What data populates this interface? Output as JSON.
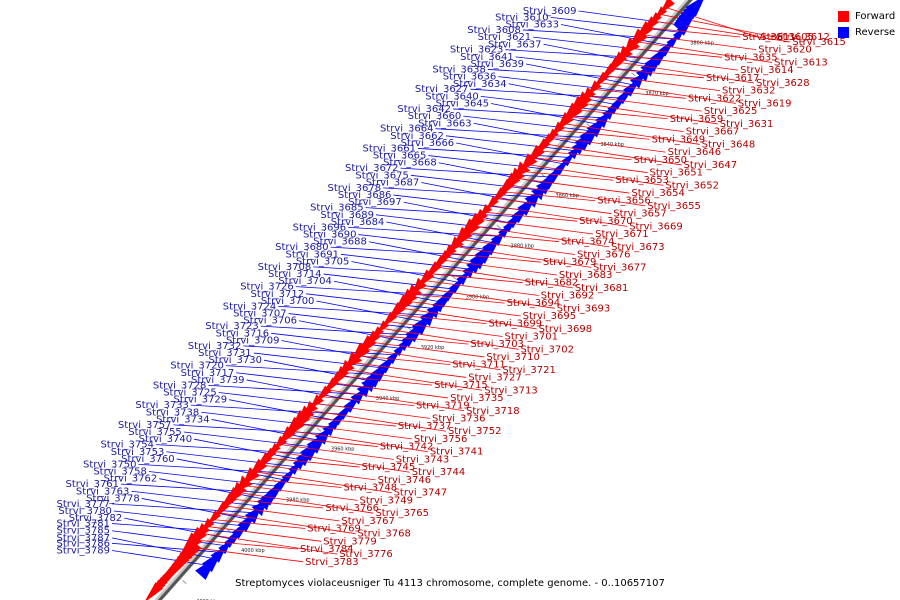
{
  "legend": {
    "forward_label": "Forward",
    "reverse_label": "Reverse",
    "forward_color": "#ff0000",
    "reverse_color": "#0000ff"
  },
  "caption": "Streptomyces violaceusniger Tu 4113 chromosome, complete genome. - 0..10657107",
  "axis_ticks": [
    "3800 kbp",
    "3820 kbp",
    "3840 kbp",
    "3860 kbp",
    "3880 kbp",
    "3900 kbp",
    "3920 kbp",
    "3940 kbp",
    "3960 kbp",
    "3980 kbp",
    "4000 kbp",
    "4020 kbp"
  ],
  "reverse_genes": [
    "Strvi_3609",
    "Strvi_3610",
    "Strvi_3608",
    "Strvi_3633",
    "Strvi_3621",
    "Strvi_3623",
    "Strvi_3637",
    "Strvi_3641",
    "Strvi_3638",
    "Strvi_3639",
    "Strvi_3636",
    "Strvi_3627",
    "Strvi_3634",
    "Strvi_3640",
    "Strvi_3642",
    "Strvi_3645",
    "Strvi_3660",
    "Strvi_3664",
    "Strvi_3663",
    "Strvi_3662",
    "Strvi_3661",
    "Strvi_3666",
    "Strvi_3665",
    "Strvi_3672",
    "Strvi_3668",
    "Strvi_3675",
    "Strvi_3678",
    "Strvi_3687",
    "Strvi_3686",
    "Strvi_3685",
    "Strvi_3697",
    "Strvi_3689",
    "Strvi_3696",
    "Strvi_3684",
    "Strvi_3690",
    "Strvi_3680",
    "Strvi_3688",
    "Strvi_3691",
    "Strvi_3708",
    "Strvi_3705",
    "Strvi_3714",
    "Strvi_3726",
    "Strvi_3704",
    "Strvi_3712",
    "Strvi_3724",
    "Strvi_3700",
    "Strvi_3707",
    "Strvi_3723",
    "Strvi_3706",
    "Strvi_3716",
    "Strvi_3732",
    "Strvi_3709",
    "Strvi_3731",
    "Strvi_3720",
    "Strvi_3730",
    "Strvi_3717",
    "Strvi_3728",
    "Strvi_3739",
    "Strvi_3725",
    "Strvi_3733",
    "Strvi_3729",
    "Strvi_3738",
    "Strvi_3757",
    "Strvi_3734",
    "Strvi_3755",
    "Strvi_3754",
    "Strvi_3740",
    "Strvi_3753",
    "Strvi_3750",
    "Strvi_3760",
    "Strvi_3758",
    "Strvi_3761",
    "Strvi_3762",
    "Strvi_3763",
    "Strvi_3777",
    "Strvi_3778",
    "Strvi_3780",
    "Strvi_3781",
    "Strvi_3782",
    "Strvi_3785",
    "Strvi_3786",
    "Strvi_3787",
    "Strvi_3789"
  ],
  "forward_genes": [
    "Strvi_3605",
    "Strvi_3612",
    "Strvi_3615",
    "Strvi_3611",
    "Strvi_3620",
    "Strvi_3613",
    "Strvi_3635",
    "Strvi_3614",
    "Strvi_3628",
    "Strvi_3617",
    "Strvi_3632",
    "Strvi_3619",
    "Strvi_3622",
    "Strvi_3625",
    "Strvi_3631",
    "Strvi_3659",
    "Strvi_3667",
    "Strvi_3648",
    "Strvi_3649",
    "Strvi_3646",
    "Strvi_3647",
    "Strvi_3650",
    "Strvi_3651",
    "Strvi_3652",
    "Strvi_3653",
    "Strvi_3654",
    "Strvi_3655",
    "Strvi_3656",
    "Strvi_3657",
    "Strvi_3669",
    "Strvi_3670",
    "Strvi_3671",
    "Strvi_3673",
    "Strvi_3674",
    "Strvi_3676",
    "Strvi_3677",
    "Strvi_3679",
    "Strvi_3683",
    "Strvi_3681",
    "Strvi_3682",
    "Strvi_3692",
    "Strvi_3693",
    "Strvi_3694",
    "Strvi_3695",
    "Strvi_3698",
    "Strvi_3699",
    "Strvi_3701",
    "Strvi_3702",
    "Strvi_3703",
    "Strvi_3710",
    "Strvi_3721",
    "Strvi_3711",
    "Strvi_3727",
    "Strvi_3713",
    "Strvi_3715",
    "Strvi_3735",
    "Strvi_3718",
    "Strvi_3719",
    "Strvi_3736",
    "Strvi_3752",
    "Strvi_3737",
    "Strvi_3756",
    "Strvi_3741",
    "Strvi_3742",
    "Strvi_3743",
    "Strvi_3744",
    "Strvi_3745",
    "Strvi_3746",
    "Strvi_3747",
    "Strvi_3748",
    "Strvi_3749",
    "Strvi_3765",
    "Strvi_3766",
    "Strvi_3767",
    "Strvi_3768",
    "Strvi_3769",
    "Strvi_3779",
    "Strvi_3776",
    "Strvi_3784",
    "Strvi_3783"
  ]
}
